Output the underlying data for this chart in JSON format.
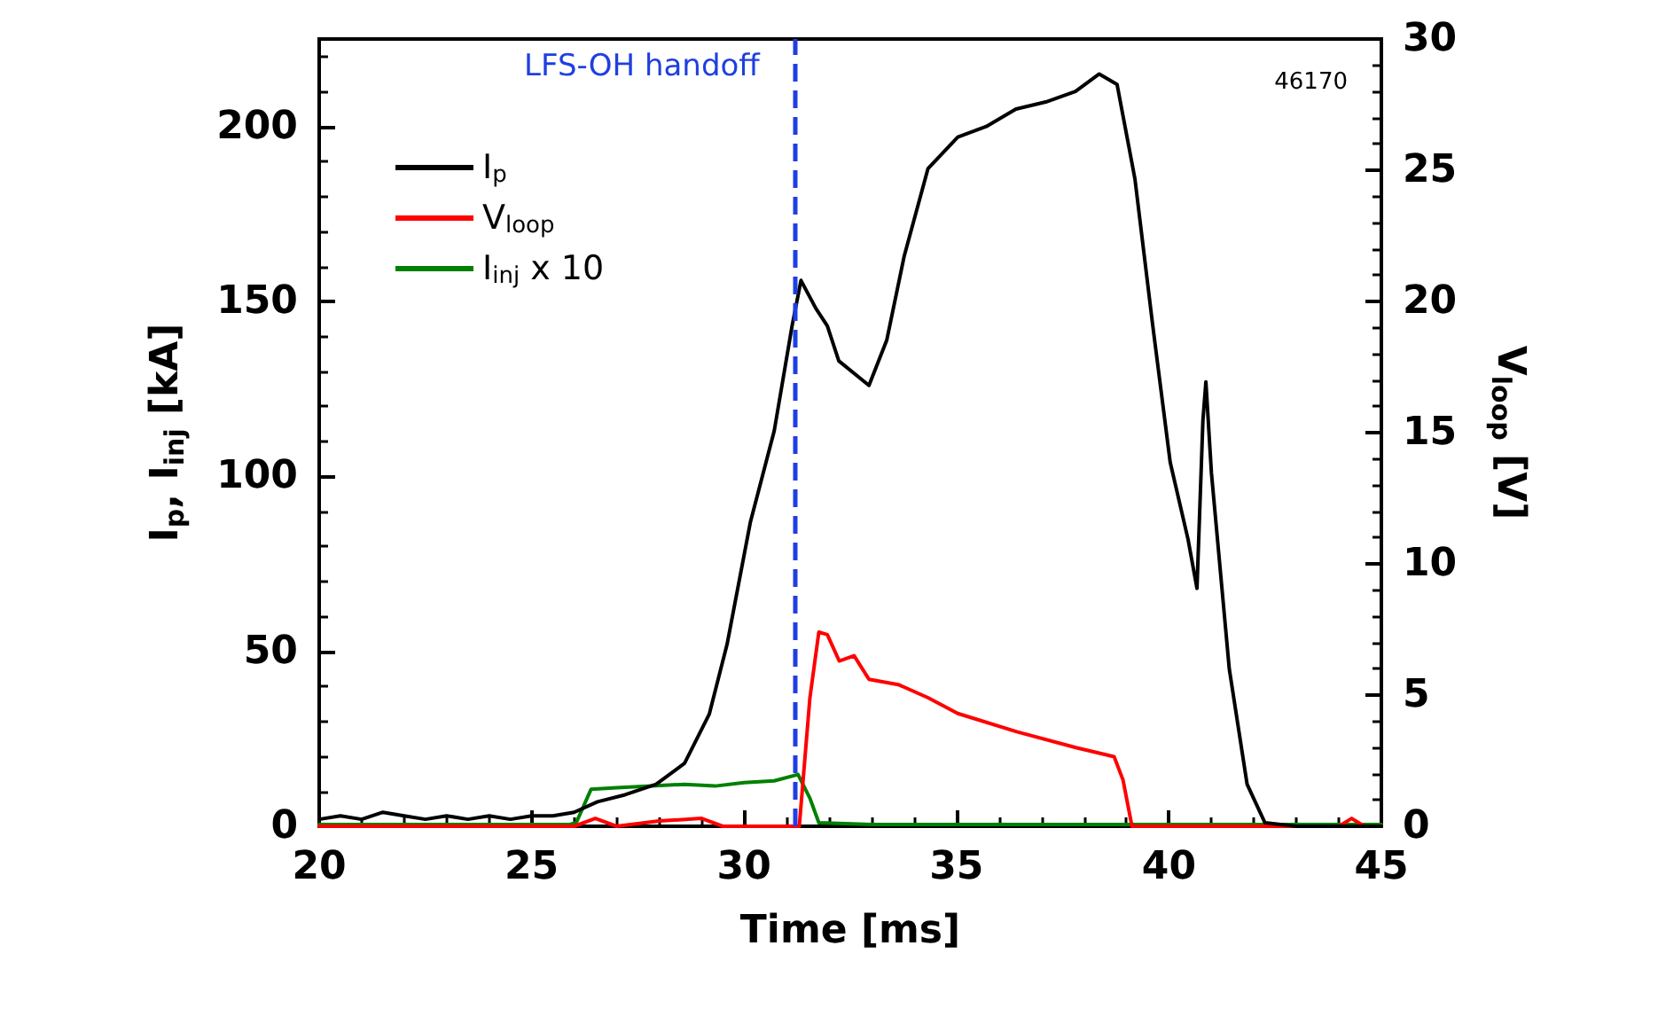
{
  "chart_data": {
    "type": "line",
    "xlabel": "Time [ms]",
    "ylabel": "I$_{p}$, I$_{inj}$ [kA]",
    "y2label": "V$_{loop}$ [V]",
    "annotations": [
      "46170"
    ],
    "xlim": [
      20,
      45
    ],
    "xticks": [
      20,
      25,
      30,
      35,
      40,
      45
    ],
    "ylim": [
      0,
      225
    ],
    "yticks": [
      0,
      50,
      100,
      150,
      200
    ],
    "y2lim": [
      0,
      30
    ],
    "y2ticks": [
      0,
      5,
      10,
      15,
      20,
      25,
      30
    ],
    "legend": "top left",
    "grid": false,
    "marker": "none",
    "line_style": "solid",
    "ref_lines": [
      {
        "axis": "x",
        "value": 31.2,
        "label": "LFS-OH handoff",
        "color": "#1f3fe0",
        "line_style": "dashed"
      }
    ],
    "series": [
      {
        "name": "I$_{p}$",
        "color": "#000000",
        "x": [
          20,
          20.5,
          21,
          21.5,
          22,
          22.5,
          23,
          23.5,
          24,
          24.5,
          25,
          25.5,
          26,
          26.55,
          27.2,
          27.93,
          28.6,
          29.18,
          29.6,
          30.15,
          30.71,
          31.13,
          31.34,
          31.69,
          31.96,
          32.23,
          32.94,
          33.36,
          33.77,
          34.33,
          35.03,
          35.7,
          36.4,
          37.1,
          37.8,
          38.36,
          38.78,
          39.2,
          39.62,
          40.03,
          40.45,
          40.66,
          40.8,
          40.87,
          41.0,
          41.42,
          41.84,
          42.26,
          43,
          44,
          45
        ],
        "values": [
          2,
          3,
          2,
          4,
          3,
          2,
          3,
          2,
          3,
          2,
          3,
          3,
          4,
          7,
          9,
          12,
          18,
          32,
          52,
          87,
          113,
          143,
          156,
          148,
          143,
          133,
          126,
          139,
          163,
          188,
          197,
          200,
          205,
          207,
          210,
          215,
          212,
          185,
          143,
          104,
          82,
          68,
          116,
          127,
          101,
          45,
          12,
          1,
          0,
          0,
          0
        ]
      },
      {
        "name": "V$_{loop}$",
        "color": "#ff0000",
        "axis": "y2",
        "x": [
          20,
          26,
          26.5,
          27,
          28,
          29,
          29.5,
          31.3,
          31.55,
          31.76,
          31.96,
          32.24,
          32.59,
          32.94,
          33.63,
          34.33,
          35.03,
          36.42,
          37.81,
          38.71,
          38.92,
          39.13,
          40,
          42,
          44,
          44.3,
          44.6,
          45
        ],
        "values": [
          0,
          0,
          0.3,
          0,
          0.2,
          0.3,
          0,
          0,
          4.9,
          7.4,
          7.3,
          6.3,
          6.5,
          5.6,
          5.4,
          4.9,
          4.3,
          3.6,
          3.0,
          2.65,
          1.76,
          0,
          0,
          0,
          0,
          0.3,
          0,
          0
        ]
      },
      {
        "name": "I$_{inj}$ x 10",
        "color": "#008000",
        "x": [
          20,
          22,
          24,
          25.9,
          26.05,
          26.4,
          27,
          27.93,
          28.6,
          29.32,
          30,
          30.71,
          31.27,
          31.55,
          31.76,
          33,
          36,
          40,
          45
        ],
        "values": [
          0.5,
          0.5,
          0.5,
          0.5,
          1,
          10.6,
          11,
          11.6,
          12,
          11.5,
          12.5,
          13,
          14.8,
          8,
          1,
          0.5,
          0.5,
          0.5,
          0.5
        ]
      }
    ]
  }
}
